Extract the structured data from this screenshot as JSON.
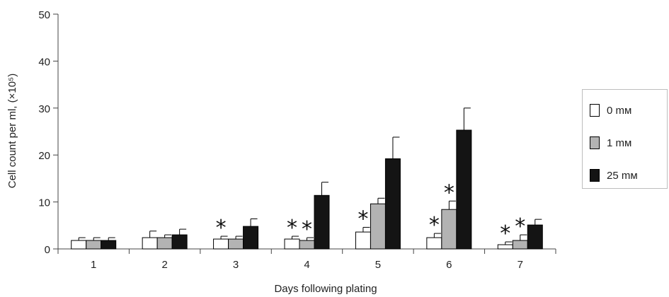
{
  "chart_data": {
    "type": "bar",
    "xlabel": "Days following plating",
    "ylabel": "Cell count per ml, (×10⁵)",
    "ylim": [
      0,
      50
    ],
    "yticks": [
      0,
      10,
      20,
      30,
      40,
      50
    ],
    "categories": [
      "1",
      "2",
      "3",
      "4",
      "5",
      "6",
      "7"
    ],
    "series": [
      {
        "name": "0 mм",
        "color": "#ffffff",
        "values": [
          1.8,
          2.4,
          2.1,
          2.1,
          3.6,
          2.4,
          0.9
        ],
        "errors": [
          0.6,
          1.4,
          0.6,
          0.6,
          1.0,
          0.9,
          0.6
        ],
        "significant": [
          false,
          false,
          true,
          true,
          true,
          true,
          true
        ]
      },
      {
        "name": "1 mм",
        "color": "#b3b3b3",
        "values": [
          1.8,
          2.4,
          2.1,
          1.8,
          9.6,
          8.4,
          1.8
        ],
        "errors": [
          0.6,
          0.6,
          0.6,
          0.6,
          1.2,
          1.8,
          1.2
        ],
        "significant": [
          false,
          false,
          false,
          true,
          false,
          true,
          true
        ]
      },
      {
        "name": "25 mм",
        "color": "#141414",
        "values": [
          1.8,
          3.0,
          4.8,
          11.4,
          19.2,
          25.3,
          5.1
        ],
        "errors": [
          0.6,
          1.2,
          1.6,
          2.8,
          4.6,
          4.7,
          1.2
        ],
        "significant": [
          false,
          false,
          false,
          false,
          false,
          false,
          false
        ]
      }
    ],
    "significance_marker": "*",
    "legend_position": "right",
    "grid": false
  }
}
